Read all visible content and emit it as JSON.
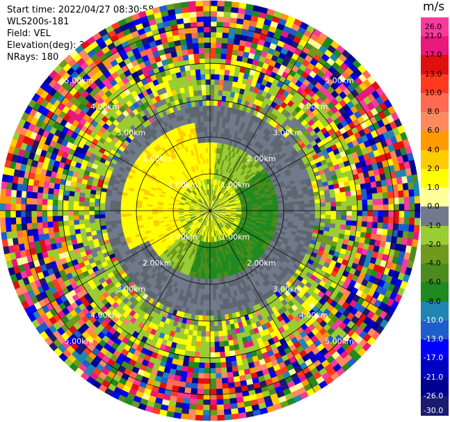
{
  "header": {
    "start_time": "Start time: 2022/04/27 08:30:58",
    "instrument": "WLS200s-181",
    "field": "Field: VEL",
    "elevation": "Elevation(deg): 35.30",
    "nrays": "NRays: 180"
  },
  "colorbar": {
    "unit": "m/s",
    "ticks": [
      "26.0",
      "21.0",
      "17.0",
      "13.0",
      "10.0",
      "8.0",
      "6.0",
      "4.0",
      "2.0",
      "1.0",
      "0.0",
      "-1.0",
      "-2.0",
      "-4.0",
      "-6.0",
      "-8.0",
      "-10.0",
      "-13.0",
      "-17.0",
      "-21.0",
      "-26.0",
      "-30.0"
    ],
    "colors": [
      "#f83a9c",
      "#e8187c",
      "#e01010",
      "#ff3a20",
      "#ff6a50",
      "#ff8a60",
      "#ff9a00",
      "#ffcc00",
      "#ffff00",
      "#ffff99",
      "#707a8a",
      "#9acd32",
      "#6f9a1e",
      "#4b8c1e",
      "#1f8a1f",
      "#1f86b4",
      "#1e5dcc",
      "#0000ff",
      "#0000c0",
      "#000090",
      "#1a1a70"
    ]
  },
  "chart_data": {
    "type": "polar-ppi",
    "field": "VEL",
    "units": "m/s",
    "range_rings_km": [
      "1.00km",
      "2.00km",
      "3.00km",
      "4.00km",
      "5.00km"
    ],
    "n_rays": 180,
    "vmin": -30.0,
    "vmax": 26.0
  }
}
